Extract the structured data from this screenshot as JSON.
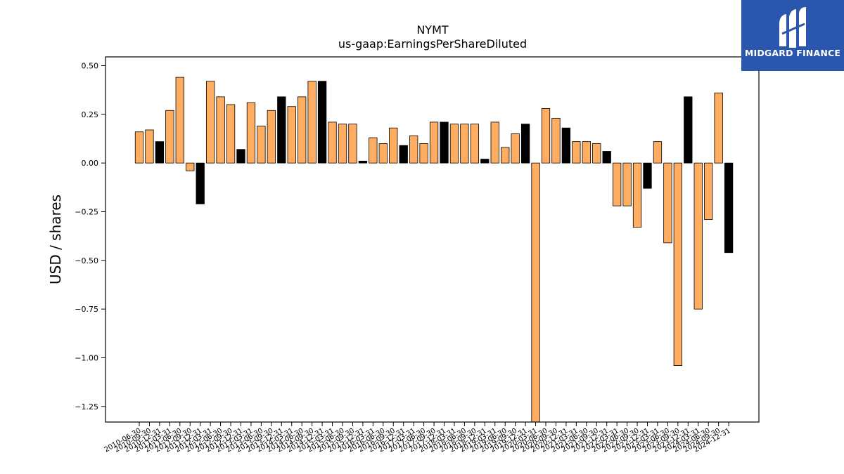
{
  "chart_data": {
    "type": "bar",
    "title": "NYMT",
    "subtitle": "us-gaap:EarningsPerShareDiluted",
    "xlabel": "",
    "ylabel": "USD / shares",
    "ylim": [
      -1.33,
      0.545
    ],
    "yticks": [
      0.5,
      0.25,
      0.0,
      -0.25,
      -0.5,
      -0.75,
      -1.0,
      -1.25
    ],
    "ytick_labels": [
      "0.50",
      "0.25",
      "0.00",
      "−0.25",
      "−0.50",
      "−0.75",
      "−1.00",
      "−1.25"
    ],
    "grid": false,
    "legend": "none",
    "colors": {
      "annual": "#000000",
      "quarter": "#ffad60",
      "edge": "#000000"
    },
    "categories": [
      "2010-06-30",
      "2010-09-30",
      "2010-12-31",
      "2011-03-31",
      "2011-06-30",
      "2011-09-30",
      "2011-12-31",
      "2012-03-31",
      "2012-06-30",
      "2012-09-30",
      "2012-12-31",
      "2013-03-31",
      "2013-06-30",
      "2013-09-30",
      "2013-12-31",
      "2014-03-31",
      "2014-06-30",
      "2014-09-30",
      "2014-12-31",
      "2015-03-31",
      "2015-06-30",
      "2015-09-30",
      "2015-12-31",
      "2016-03-31",
      "2016-06-30",
      "2016-09-30",
      "2016-12-31",
      "2017-03-31",
      "2017-06-30",
      "2017-09-30",
      "2017-12-31",
      "2018-03-31",
      "2018-06-30",
      "2018-09-30",
      "2018-12-31",
      "2019-03-31",
      "2019-06-30",
      "2019-09-30",
      "2019-12-31",
      "2020-03-31",
      "2020-06-30",
      "2020-09-30",
      "2020-12-31",
      "2021-03-31",
      "2021-06-30",
      "2021-09-30",
      "2021-12-31",
      "2022-03-31",
      "2022-06-30",
      "2022-09-30",
      "2022-12-31",
      "2023-03-31",
      "2023-06-30",
      "2023-09-30",
      "2023-12-31",
      "2024-03-31",
      "2024-06-30",
      "2024-09-30",
      "2024-12-31"
    ],
    "values": [
      0.16,
      0.17,
      0.11,
      0.27,
      0.44,
      -0.04,
      -0.21,
      0.42,
      0.34,
      0.3,
      0.07,
      0.31,
      0.19,
      0.27,
      0.34,
      0.29,
      0.34,
      0.42,
      0.42,
      0.21,
      0.2,
      0.2,
      0.01,
      0.13,
      0.1,
      0.18,
      0.09,
      0.14,
      0.1,
      0.21,
      0.21,
      0.2,
      0.2,
      0.2,
      0.02,
      0.21,
      0.08,
      0.15,
      0.2,
      -1.35,
      0.28,
      0.23,
      0.18,
      0.11,
      0.11,
      0.1,
      0.06,
      -0.22,
      -0.22,
      -0.33,
      -0.13,
      0.11,
      -0.41,
      -1.04,
      0.34,
      -0.75,
      -0.29,
      0.36,
      -0.46
    ],
    "annual": [
      false,
      false,
      true,
      false,
      false,
      false,
      true,
      false,
      false,
      false,
      true,
      false,
      false,
      false,
      true,
      false,
      false,
      false,
      true,
      false,
      false,
      false,
      true,
      false,
      false,
      false,
      true,
      false,
      false,
      false,
      true,
      false,
      false,
      false,
      true,
      false,
      false,
      false,
      true,
      false,
      false,
      false,
      true,
      false,
      false,
      false,
      true,
      false,
      false,
      false,
      true,
      false,
      false,
      false,
      true,
      false,
      false,
      false,
      true
    ]
  },
  "logo": {
    "text": "MIDGARD FINANCE",
    "icon": "midgard-logo-icon"
  }
}
